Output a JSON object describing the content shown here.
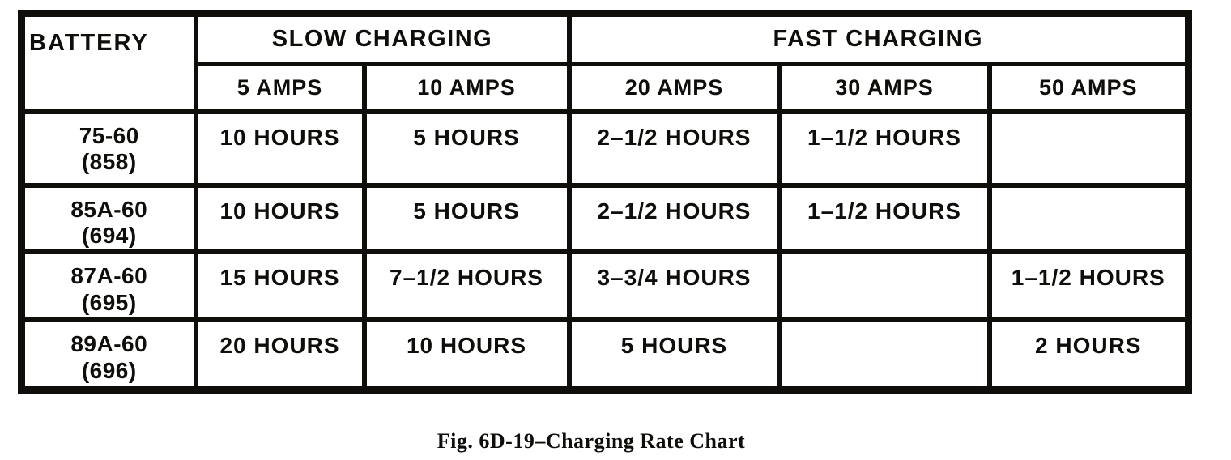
{
  "page": {
    "caption": "Fig. 6D-19–Charging Rate Chart"
  },
  "colors": {
    "ink": "#100e0b",
    "paper": "#ffffff"
  },
  "table": {
    "corner_label": "BATTERY",
    "groups": [
      {
        "label": "SLOW CHARGING",
        "columns": [
          "5 AMPS",
          "10 AMPS"
        ]
      },
      {
        "label": "FAST CHARGING",
        "columns": [
          "20 AMPS",
          "30 AMPS",
          "50 AMPS"
        ]
      }
    ],
    "rows": [
      {
        "name": "75-60",
        "code": "(858)",
        "values": [
          "10 HOURS",
          "5 HOURS",
          "2–1/2 HOURS",
          "1–1/2 HOURS",
          ""
        ]
      },
      {
        "name": "85A-60",
        "code": "(694)",
        "values": [
          "10 HOURS",
          "5 HOURS",
          "2–1/2 HOURS",
          "1–1/2 HOURS",
          ""
        ]
      },
      {
        "name": "87A-60",
        "code": "(695)",
        "values": [
          "15 HOURS",
          "7–1/2 HOURS",
          "3–3/4 HOURS",
          "",
          "1–1/2 HOURS"
        ]
      },
      {
        "name": "89A-60",
        "code": "(696)",
        "values": [
          "20 HOURS",
          "10 HOURS",
          "5 HOURS",
          "",
          "2 HOURS"
        ]
      }
    ]
  },
  "chart_data": {
    "type": "table",
    "title": "Fig. 6D-19–Charging Rate Chart",
    "column_groups": [
      {
        "label": "SLOW CHARGING",
        "span": [
          "5 AMPS",
          "10 AMPS"
        ]
      },
      {
        "label": "FAST CHARGING",
        "span": [
          "20 AMPS",
          "30 AMPS",
          "50 AMPS"
        ]
      }
    ],
    "columns": [
      "BATTERY",
      "5 AMPS",
      "10 AMPS",
      "20 AMPS",
      "30 AMPS",
      "50 AMPS"
    ],
    "rows": [
      [
        "75-60 (858)",
        "10 HOURS",
        "5 HOURS",
        "2–1/2 HOURS",
        "1–1/2 HOURS",
        ""
      ],
      [
        "85A-60 (694)",
        "10 HOURS",
        "5 HOURS",
        "2–1/2 HOURS",
        "1–1/2 HOURS",
        ""
      ],
      [
        "87A-60 (695)",
        "15 HOURS",
        "7–1/2 HOURS",
        "3–3/4 HOURS",
        "",
        "1–1/2 HOURS"
      ],
      [
        "89A-60 (696)",
        "20 HOURS",
        "10 HOURS",
        "5 HOURS",
        "",
        "2 HOURS"
      ]
    ],
    "hours_numeric": {
      "amps": [
        5,
        10,
        20,
        30,
        50
      ],
      "batteries": [
        "75-60 (858)",
        "85A-60 (694)",
        "87A-60 (695)",
        "89A-60 (696)"
      ],
      "hours": [
        [
          10,
          5,
          2.5,
          1.5,
          null
        ],
        [
          10,
          5,
          2.5,
          1.5,
          null
        ],
        [
          15,
          7.5,
          3.75,
          null,
          1.5
        ],
        [
          20,
          10,
          5,
          null,
          2
        ]
      ]
    }
  }
}
